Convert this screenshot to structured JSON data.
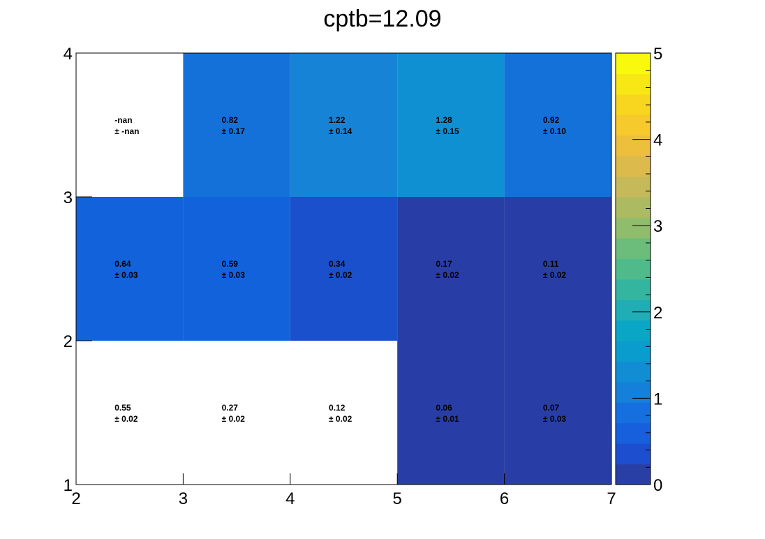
{
  "chart_data": {
    "type": "heatmap",
    "title": "cptb=12.09",
    "xlabel": "",
    "ylabel": "",
    "xlim": [
      2,
      7
    ],
    "ylim": [
      1,
      4
    ],
    "x_ticks": [
      "2",
      "3",
      "4",
      "5",
      "6",
      "7"
    ],
    "y_ticks": [
      "1",
      "2",
      "3",
      "4"
    ],
    "x_edges": [
      2,
      3,
      4,
      5,
      6,
      7
    ],
    "y_edges": [
      1,
      2,
      3,
      4
    ],
    "colorbar": {
      "range": [
        0,
        5
      ],
      "ticks": [
        "0",
        "1",
        "2",
        "3",
        "4",
        "5"
      ],
      "palette": [
        "#2a3fa6",
        "#1c4ecf",
        "#165fdd",
        "#156fdf",
        "#1580d9",
        "#118ed3",
        "#0a9ccd",
        "#0aa6c5",
        "#20adb5",
        "#33b5a0",
        "#4fbb8b",
        "#6cbd7c",
        "#8fbd6c",
        "#acbb62",
        "#c6b95a",
        "#dcba4c",
        "#ecc03c",
        "#f6c92c",
        "#f8d61f",
        "#f6e715",
        "#f9f90e"
      ]
    },
    "cells": [
      {
        "x": 2.5,
        "y": 1.5,
        "value": 0.55,
        "error": 0.02,
        "label": "0.55",
        "err_label": "± 0.02",
        "color": "#ffffff"
      },
      {
        "x": 3.5,
        "y": 1.5,
        "value": 0.27,
        "error": 0.02,
        "label": "0.27",
        "err_label": "± 0.02",
        "color": "#ffffff"
      },
      {
        "x": 4.5,
        "y": 1.5,
        "value": 0.12,
        "error": 0.02,
        "label": "0.12",
        "err_label": "± 0.02",
        "color": "#ffffff"
      },
      {
        "x": 5.5,
        "y": 1.5,
        "value": 0.06,
        "error": 0.01,
        "label": "0.06",
        "err_label": "± 0.01",
        "color": "#283ea6"
      },
      {
        "x": 6.5,
        "y": 1.5,
        "value": 0.07,
        "error": 0.03,
        "label": "0.07",
        "err_label": "± 0.03",
        "color": "#283ea6"
      },
      {
        "x": 2.5,
        "y": 2.5,
        "value": 0.64,
        "error": 0.03,
        "label": "0.64",
        "err_label": "± 0.03",
        "color": "#1262dc"
      },
      {
        "x": 3.5,
        "y": 2.5,
        "value": 0.59,
        "error": 0.03,
        "label": "0.59",
        "err_label": "± 0.03",
        "color": "#1262dc"
      },
      {
        "x": 4.5,
        "y": 2.5,
        "value": 0.34,
        "error": 0.02,
        "label": "0.34",
        "err_label": "± 0.02",
        "color": "#1a50cb"
      },
      {
        "x": 5.5,
        "y": 2.5,
        "value": 0.17,
        "error": 0.02,
        "label": "0.17",
        "err_label": "± 0.02",
        "color": "#283ea6"
      },
      {
        "x": 6.5,
        "y": 2.5,
        "value": 0.11,
        "error": 0.02,
        "label": "0.11",
        "err_label": "± 0.02",
        "color": "#283ea6"
      },
      {
        "x": 2.5,
        "y": 3.5,
        "value": null,
        "error": null,
        "label": "-nan",
        "err_label": "± -nan",
        "color": "#ffffff"
      },
      {
        "x": 3.5,
        "y": 3.5,
        "value": 0.82,
        "error": 0.17,
        "label": "0.82",
        "err_label": "± 0.17",
        "color": "#1471da"
      },
      {
        "x": 4.5,
        "y": 3.5,
        "value": 1.22,
        "error": 0.14,
        "label": "1.22",
        "err_label": "± 0.14",
        "color": "#1683d7"
      },
      {
        "x": 5.5,
        "y": 3.5,
        "value": 1.28,
        "error": 0.15,
        "label": "1.28",
        "err_label": "± 0.15",
        "color": "#0f90d2"
      },
      {
        "x": 6.5,
        "y": 3.5,
        "value": 0.92,
        "error": 0.1,
        "label": "0.92",
        "err_label": "± 0.10",
        "color": "#1471da"
      }
    ]
  }
}
